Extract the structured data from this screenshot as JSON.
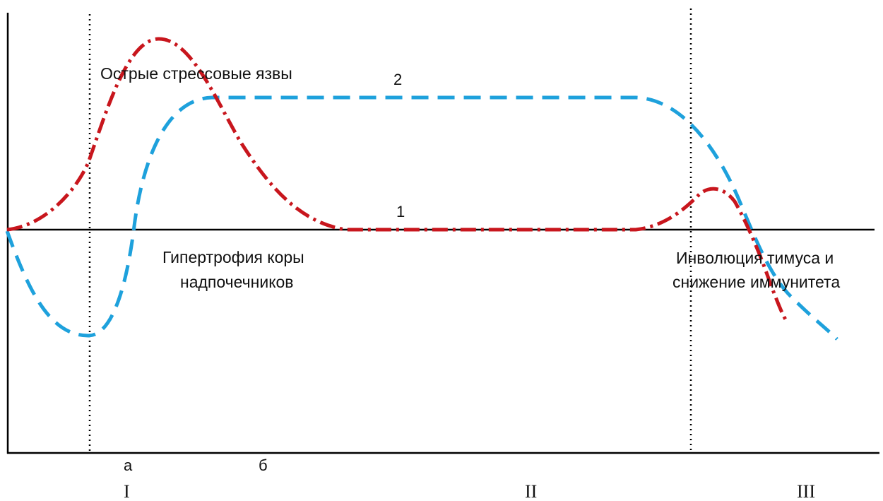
{
  "colors": {
    "curve1": "#c8161d",
    "curve2": "#1ea1dc",
    "axis": "#000000",
    "background": "#ffffff"
  },
  "labels": {
    "acute_ulcers": "Острые стрессовые язвы",
    "curve2_number": "2",
    "curve1_number": "1",
    "adrenal_line1": "Гипертрофия коры",
    "adrenal_line2": "надпочечников",
    "thymus_line1": "Инволюция тимуса и",
    "thymus_line2": "снижение иммунитета",
    "sub_a": "а",
    "sub_b": "б",
    "stage1": "I",
    "stage2": "II",
    "stage3": "III"
  },
  "curves": [
    {
      "id": "1",
      "style": "dash-dot",
      "color": "#c8161d"
    },
    {
      "id": "2",
      "style": "dashed",
      "color": "#1ea1dc"
    }
  ]
}
